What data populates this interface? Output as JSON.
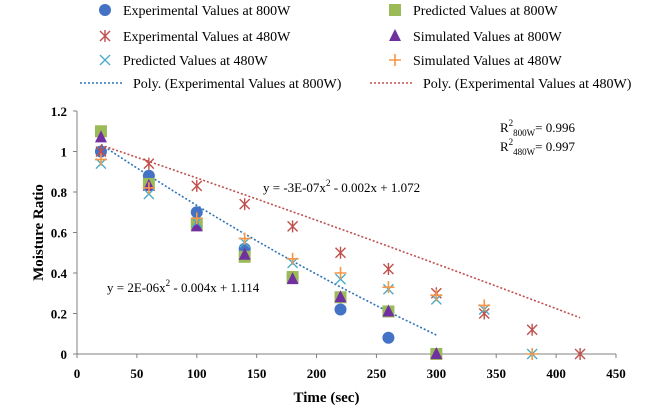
{
  "chart_data": {
    "type": "scatter",
    "xlabel": "Time (sec)",
    "ylabel": "Moisture Ratio",
    "xlim": [
      0,
      450
    ],
    "ylim": [
      0,
      1.2
    ],
    "x_ticks": [
      "0",
      "50",
      "100",
      "150",
      "200",
      "250",
      "300",
      "350",
      "400",
      "450"
    ],
    "y_ticks": [
      "0",
      "0.2",
      "0.4",
      "0.6",
      "0.8",
      "1",
      "1.2"
    ],
    "grid": false,
    "legend_position": "top",
    "series": [
      {
        "name": "Experimental Values at 800W",
        "marker": "circle",
        "color": "#4472c4",
        "points": [
          [
            20,
            1.0
          ],
          [
            60,
            0.88
          ],
          [
            100,
            0.7
          ],
          [
            140,
            0.52
          ],
          [
            180,
            0.38
          ],
          [
            220,
            0.22
          ],
          [
            260,
            0.08
          ]
        ]
      },
      {
        "name": "Predicted Values at 800W",
        "marker": "square",
        "color": "#9bbb59",
        "points": [
          [
            20,
            1.1
          ],
          [
            60,
            0.84
          ],
          [
            100,
            0.64
          ],
          [
            140,
            0.48
          ],
          [
            180,
            0.38
          ],
          [
            220,
            0.28
          ],
          [
            260,
            0.21
          ],
          [
            300,
            0.0
          ]
        ]
      },
      {
        "name": "Experimental Values at 480W",
        "marker": "x-star",
        "color": "#c0504d",
        "points": [
          [
            20,
            1.0
          ],
          [
            60,
            0.94
          ],
          [
            100,
            0.83
          ],
          [
            140,
            0.74
          ],
          [
            180,
            0.63
          ],
          [
            220,
            0.5
          ],
          [
            260,
            0.42
          ],
          [
            300,
            0.3
          ],
          [
            340,
            0.2
          ],
          [
            380,
            0.12
          ],
          [
            420,
            0.0
          ]
        ]
      },
      {
        "name": "Simulated Values at 800W",
        "marker": "triangle",
        "color": "#7030a0",
        "points": [
          [
            20,
            1.07
          ],
          [
            60,
            0.83
          ],
          [
            100,
            0.63
          ],
          [
            140,
            0.49
          ],
          [
            180,
            0.37
          ],
          [
            220,
            0.28
          ],
          [
            260,
            0.21
          ],
          [
            300,
            0.0
          ]
        ]
      },
      {
        "name": "Predicted Values at 480W",
        "marker": "x",
        "color": "#4bacc6",
        "points": [
          [
            20,
            0.94
          ],
          [
            60,
            0.79
          ],
          [
            100,
            0.65
          ],
          [
            140,
            0.55
          ],
          [
            180,
            0.45
          ],
          [
            220,
            0.37
          ],
          [
            260,
            0.32
          ],
          [
            300,
            0.27
          ],
          [
            340,
            0.22
          ],
          [
            380,
            0.0
          ]
        ]
      },
      {
        "name": "Simulated Values at 480W",
        "marker": "plus",
        "color": "#f79646",
        "points": [
          [
            20,
            0.96
          ],
          [
            60,
            0.82
          ],
          [
            100,
            0.67
          ],
          [
            140,
            0.57
          ],
          [
            180,
            0.47
          ],
          [
            220,
            0.4
          ],
          [
            260,
            0.33
          ],
          [
            300,
            0.29
          ],
          [
            340,
            0.24
          ],
          [
            380,
            0.0
          ]
        ]
      }
    ],
    "trendlines": [
      {
        "name": "Poly. (Experimental Values at 800W)",
        "color": "#2e75b6",
        "coefficients": [
          2e-06,
          -0.004,
          1.114
        ],
        "x_range": [
          20,
          300
        ]
      },
      {
        "name": "Poly. (Experimental Values at 480W)",
        "color": "#c0504d",
        "coefficients": [
          -3e-07,
          -0.002,
          1.072
        ],
        "x_range": [
          20,
          420
        ]
      }
    ],
    "annotations": {
      "eq_800": {
        "base": "y = 2E-06x",
        "sup": "2",
        "tail": " - 0.004x + 1.114"
      },
      "eq_480": {
        "base": "y = -3E-07x",
        "sup": "2",
        "tail": " - 0.002x + 1.072"
      },
      "r2_800": {
        "base": "R",
        "sup": "2",
        "sub": "800W",
        "tail": "= 0.996"
      },
      "r2_480": {
        "base": "R",
        "sup": "2",
        "sub": "480W",
        "tail": "= 0.997"
      }
    }
  }
}
